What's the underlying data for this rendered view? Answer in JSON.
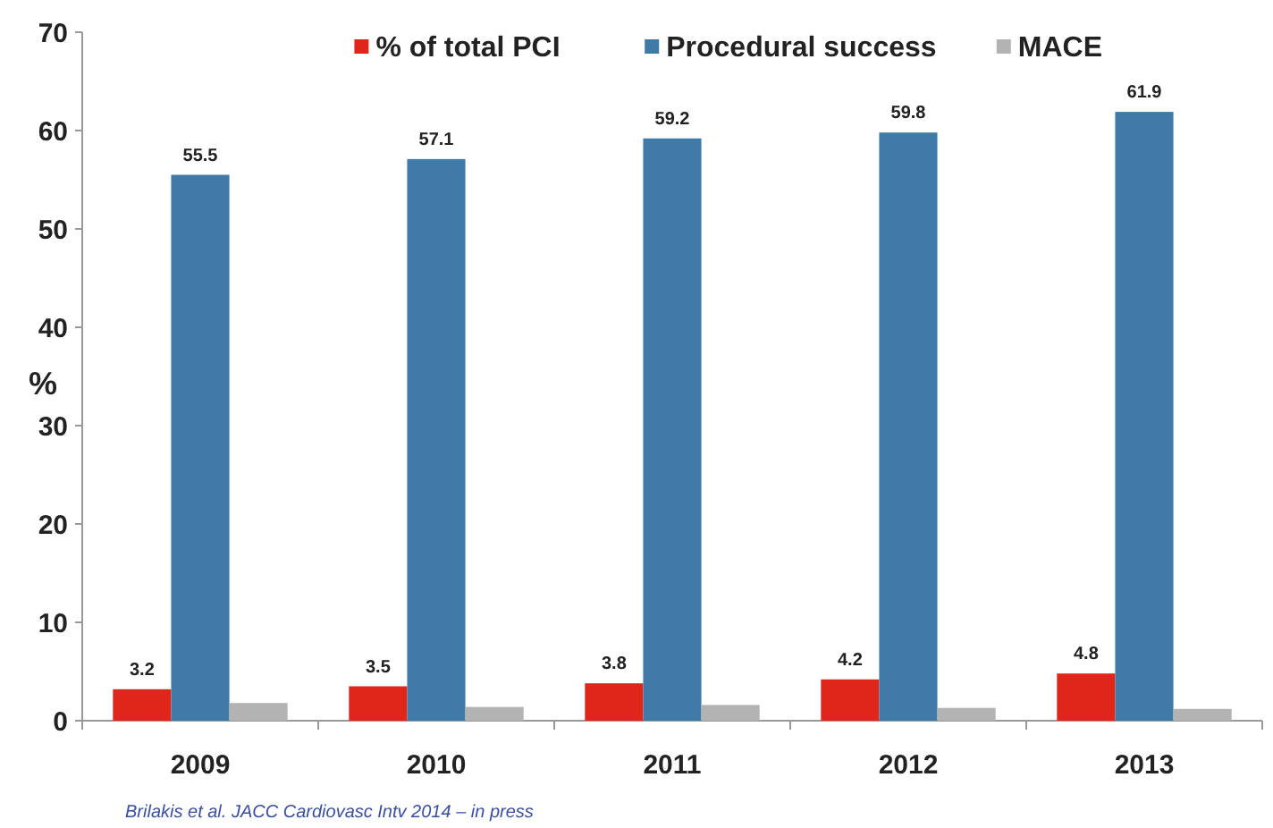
{
  "chart_data": {
    "type": "bar",
    "categories": [
      "2009",
      "2010",
      "2011",
      "2012",
      "2013"
    ],
    "series": [
      {
        "name": "% of total PCI",
        "color": "#e0261b",
        "values": [
          3.2,
          3.5,
          3.8,
          4.2,
          4.8
        ],
        "value_labels": [
          "3.2",
          "3.5",
          "3.8",
          "4.2",
          "4.8"
        ]
      },
      {
        "name": "Procedural success",
        "color": "#3f7ba6",
        "values": [
          55.5,
          57.1,
          59.2,
          59.8,
          61.9
        ],
        "value_labels": [
          "55.5",
          "57.1",
          "59.2",
          "59.8",
          "61.9"
        ]
      },
      {
        "name": "MACE",
        "color": "#b3b3b3",
        "values": [
          1.8,
          1.4,
          1.6,
          1.3,
          1.2
        ]
      }
    ],
    "ylabel": "%",
    "ylim": [
      0,
      70
    ],
    "yticks": [
      0,
      10,
      20,
      30,
      40,
      50,
      60,
      70
    ],
    "legend": "top",
    "annotations": [
      "Brilakis et al. JACC Cardiovasc Intv 2014 – in press"
    ]
  }
}
